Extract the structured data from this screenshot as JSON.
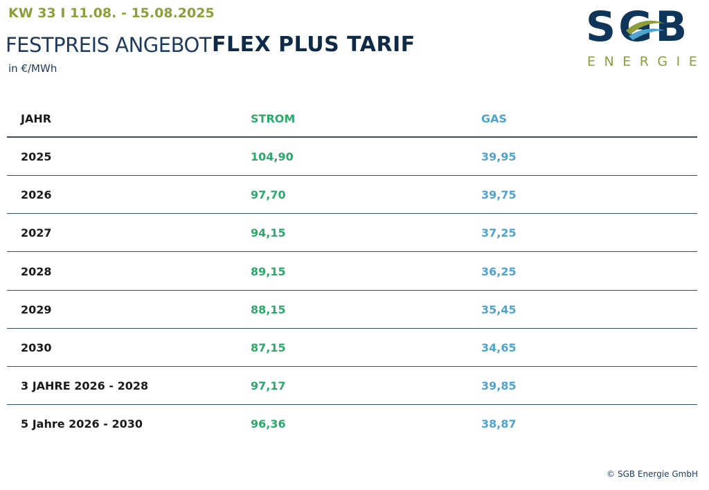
{
  "header": {
    "week": "KW 33 I 11.08. - 15.08.2025",
    "title": "FESTPREIS ANGEBOT",
    "title_bold": "FLEX PLUS TARIF",
    "unit": "in €/MWh"
  },
  "logo": {
    "text": "SGB",
    "subtitle": "ENERGIE"
  },
  "table": {
    "columns": [
      "JAHR",
      "STROM",
      "GAS"
    ],
    "rows": [
      [
        "2025",
        "104,90",
        "39,95"
      ],
      [
        "2026",
        "97,70",
        "39,75"
      ],
      [
        "2027",
        "94,15",
        "37,25"
      ],
      [
        "2028",
        "89,15",
        "36,25"
      ],
      [
        "2029",
        "88,15",
        "35,45"
      ],
      [
        "2030",
        "87,15",
        "34,65"
      ],
      [
        "3 JAHRE 2026 - 2028",
        "97,17",
        "39,85"
      ],
      [
        "5 Jahre 2026 - 2030",
        "96,36",
        "38,87"
      ]
    ]
  },
  "footer": {
    "copyright": "© SGB Energie GmbH"
  }
}
